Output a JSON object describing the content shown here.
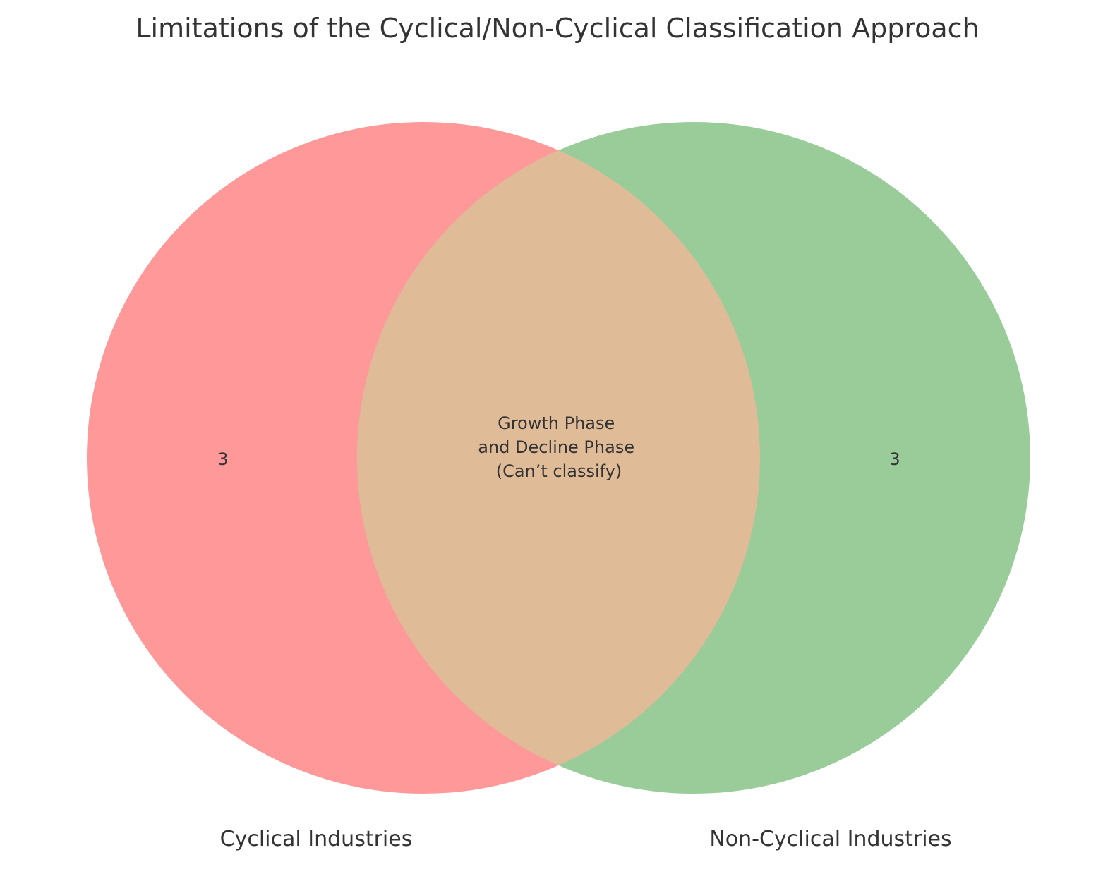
{
  "title": "Limitations of the Cyclical/Non-Cyclical Classification Approach",
  "sets": [
    {
      "name": "Cyclical Industries",
      "color": "#ff9999"
    },
    {
      "name": "Non-Cyclical Industries",
      "color": "#99cc99"
    }
  ],
  "overlap_color": "#e0bb98",
  "regions": {
    "left_only": "3",
    "right_only": "3",
    "intersection_lines": [
      "Growth Phase",
      "and Decline Phase",
      "(Can’t classify)"
    ]
  }
}
